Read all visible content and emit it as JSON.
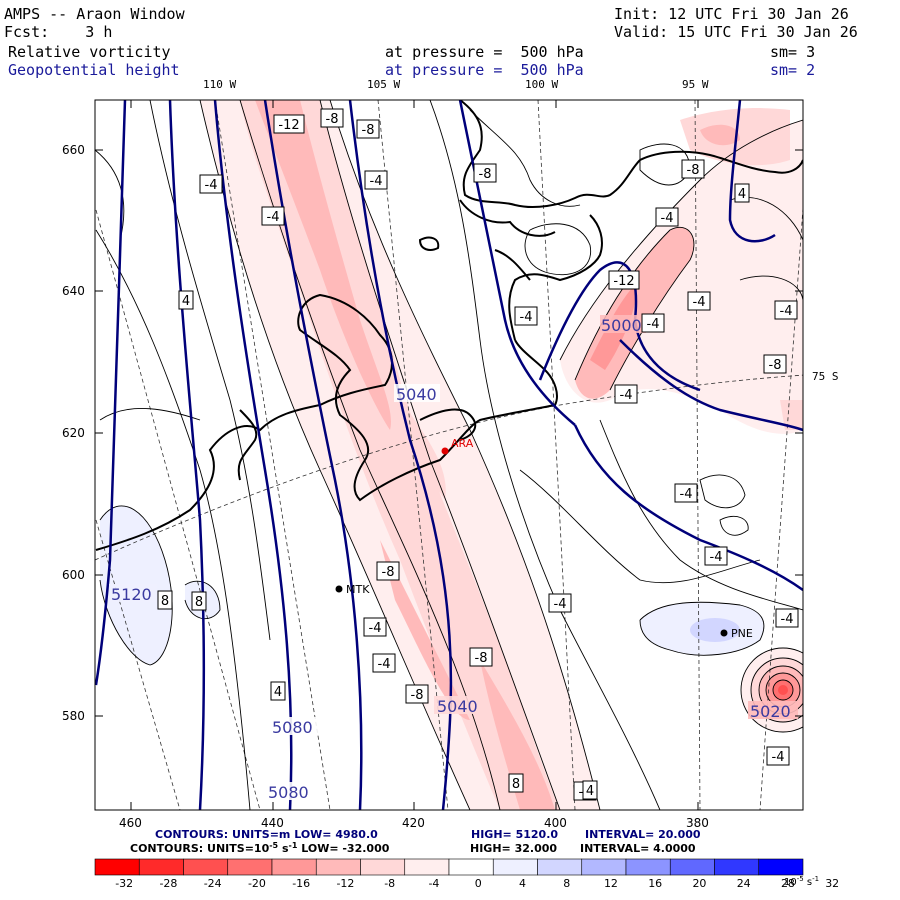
{
  "header": {
    "title": "AMPS -- Araon Window",
    "init": "Init: 12 UTC Fri 30 Jan 26",
    "fcst": "Fcst:    3 h",
    "valid": "Valid: 15 UTC Fri 30 Jan 26",
    "field1": {
      "name": "Relative vorticity",
      "pressure": "at pressure =  500 hPa",
      "sm": "sm= 3"
    },
    "field2": {
      "name": "Geopotential height",
      "pressure": "at pressure =  500 hPa",
      "sm": "sm= 2"
    }
  },
  "lon_labels": [
    "110 W",
    "105 W",
    "100 W",
    "95 W"
  ],
  "lat_label": "75 S",
  "y_ticks": [
    "660",
    "640",
    "620",
    "600",
    "580"
  ],
  "x_ticks": [
    "460",
    "440",
    "420",
    "400",
    "380"
  ],
  "stations": [
    {
      "name": "ARA",
      "color": "#e00000"
    },
    {
      "name": "MTK",
      "color": "#000000"
    },
    {
      "name": "PNE",
      "color": "#000000"
    }
  ],
  "height_labels": [
    "5040",
    "5000",
    "5120",
    "5080",
    "5080",
    "5040",
    "5020"
  ],
  "vort_labels": [
    "-12",
    "-8",
    "-8",
    "-4",
    "-4",
    "-4",
    "-8",
    "-8",
    "4",
    "-12",
    "-4",
    "-4",
    "-4",
    "-8",
    "-4",
    "-4",
    "-4",
    "-4",
    "8",
    "8",
    "-8",
    "-4",
    "-4",
    "-4",
    "-8",
    "4",
    "-8",
    "-4",
    "-4",
    "4",
    "8",
    "-4",
    "-4",
    "4"
  ],
  "footer": {
    "line1": {
      "a": "CONTOURS:  UNITS=m  LOW=  4980.0",
      "b": "HIGH=  5120.0",
      "c": "INTERVAL=   20.000"
    },
    "line2": {
      "a": "CONTOURS:  UNITS=10",
      "sup": "-5",
      "b": " s",
      "sup2": "-1",
      "c": "  LOW= -32.000",
      "d": "HIGH=  32.000",
      "e": "INTERVAL=   4.0000"
    }
  },
  "colorbar": {
    "labels": [
      "-32",
      "-28",
      "-24",
      "-20",
      "-16",
      "-12",
      "-8",
      "-4",
      "0",
      "4",
      "8",
      "12",
      "16",
      "20",
      "24",
      "28",
      "32"
    ],
    "unit": "10",
    "unit_sup": "-5",
    "unit_s": " s",
    "unit_sup2": "-1",
    "colors": [
      "#ff0000",
      "#ff2a2a",
      "#ff5050",
      "#ff7070",
      "#ff9898",
      "#ffbaba",
      "#ffd8d8",
      "#ffeeee",
      "#ffffff",
      "#ffffff",
      "#eef0ff",
      "#d2d6ff",
      "#b2b8ff",
      "#8c94ff",
      "#6068ff",
      "#3038ff",
      "#0000ff"
    ]
  }
}
